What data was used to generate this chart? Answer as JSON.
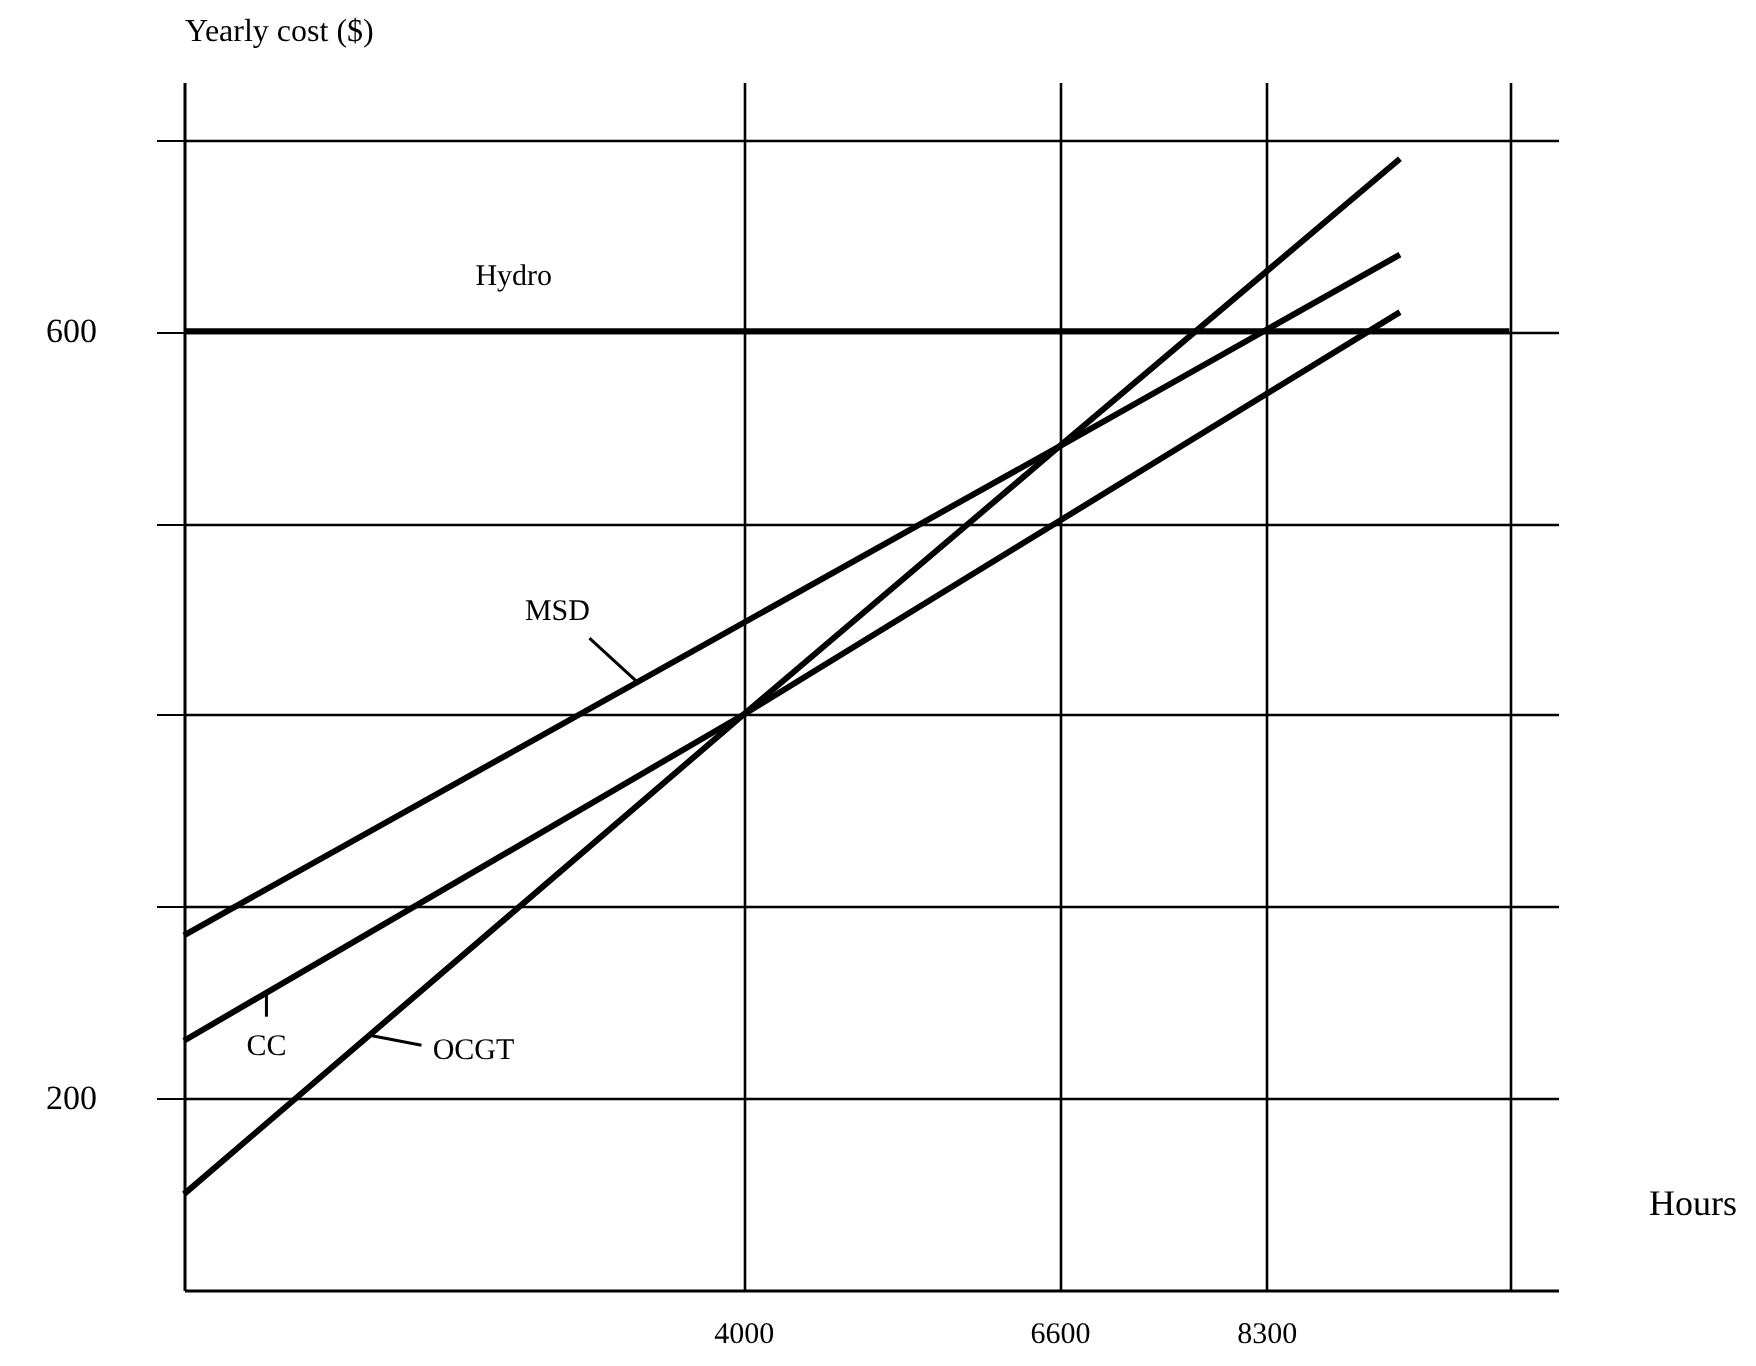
{
  "chart_data": {
    "type": "line",
    "xlabel": "Hours",
    "ylabel": "Yearly cost ($)",
    "xlim": [
      -600,
      10700
    ],
    "ylim": [
      100,
      730
    ],
    "xticks": [
      4000,
      6600,
      8300,
      {
        "value": 10300,
        "label": null
      }
    ],
    "yticks": [
      200,
      {
        "value": 300,
        "label": null
      },
      {
        "value": 400,
        "label": null
      },
      {
        "value": 500,
        "label": null
      },
      600,
      {
        "value": 700,
        "label": null
      }
    ],
    "grid": true,
    "series": [
      {
        "name": "Hydro",
        "color": "#000000",
        "x": [
          -600,
          10300
        ],
        "values": [
          600,
          600
        ]
      },
      {
        "name": "MSD",
        "color": "#000000",
        "x": [
          -600,
          6600,
          9400
        ],
        "values": [
          285,
          540,
          640
        ]
      },
      {
        "name": "CC",
        "color": "#000000",
        "x": [
          -600,
          4000,
          9400
        ],
        "values": [
          230,
          400,
          610
        ]
      },
      {
        "name": "OCGT",
        "color": "#000000",
        "x": [
          -600,
          4000,
          6600,
          9400
        ],
        "values": [
          150,
          400,
          540,
          690
        ]
      }
    ]
  }
}
